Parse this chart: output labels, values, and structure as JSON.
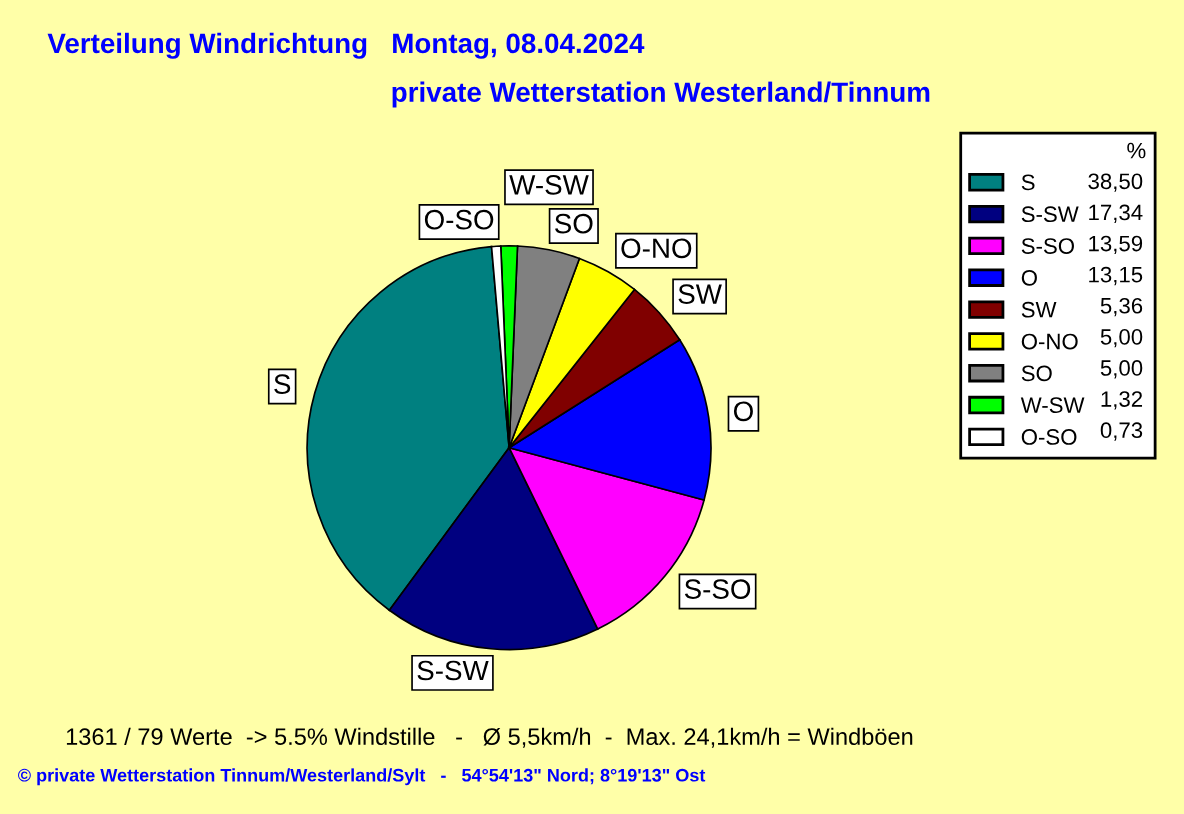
{
  "chart_data": {
    "type": "pie",
    "title": "Verteilung Windrichtung   Montag, 08.04.2024",
    "subtitle": "private Wetterstation Westerland/Tinnum",
    "categories": [
      "S",
      "S-SW",
      "S-SO",
      "O",
      "SW",
      "O-NO",
      "SO",
      "W-SW",
      "O-SO"
    ],
    "values": [
      38.5,
      17.34,
      13.59,
      13.15,
      5.36,
      5.0,
      5.0,
      1.32,
      0.73
    ],
    "value_labels": [
      "38,50",
      "17,34",
      "13,59",
      "13,15",
      "5,36",
      "5,00",
      "5,00",
      "1,32",
      "0,73"
    ],
    "colors": [
      "#008080",
      "#000080",
      "#ff00ff",
      "#0000ff",
      "#800000",
      "#ffff00",
      "#808080",
      "#00ff00",
      "#ffffff"
    ],
    "legend": "right",
    "legend_title": "%",
    "annotations": [
      "1361 / 79 Werte  -> 5.5% Windstille   -   Ø 5,5km/h  -  Max. 24,1km/h = Windböen",
      "© private Wetterstation Tinnum/Westerland/Sylt   -   54°54'13\" Nord; 8°19'13\" Ost"
    ]
  }
}
